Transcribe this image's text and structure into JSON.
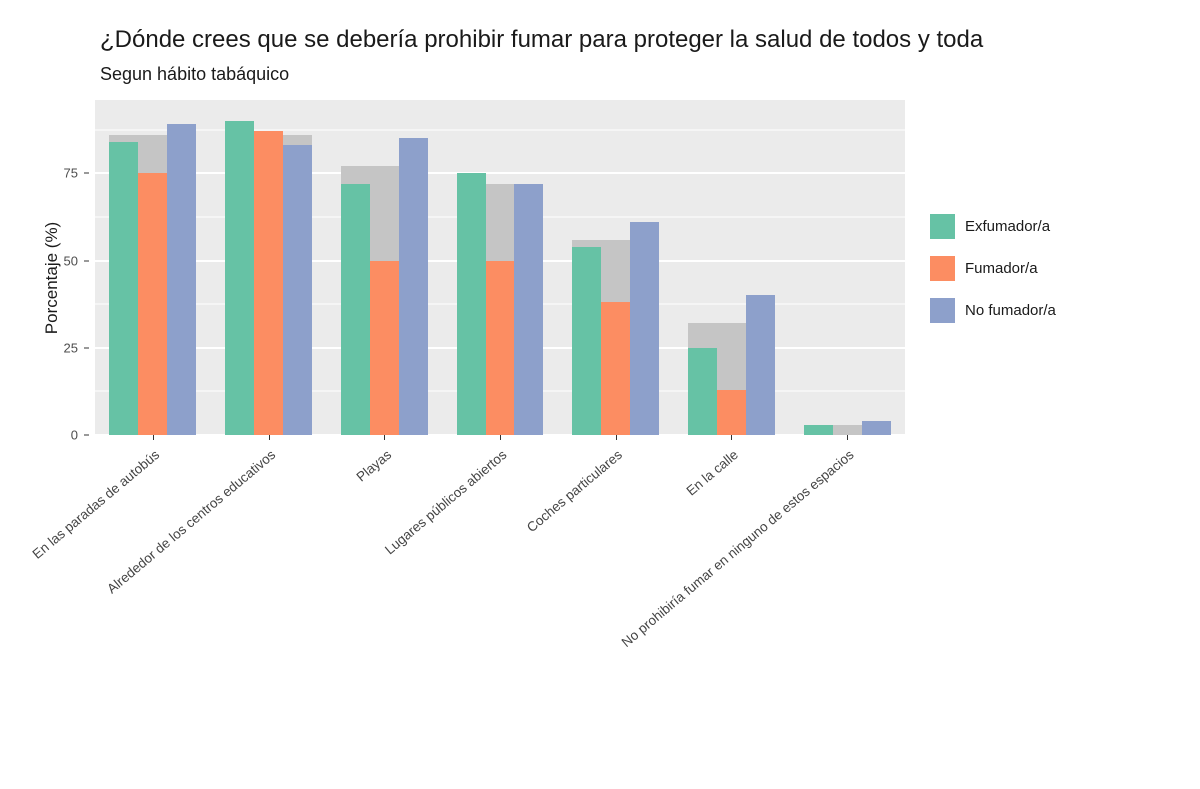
{
  "chart_data": {
    "type": "bar",
    "title": "¿Dónde crees que se debería prohibir fumar para proteger la salud de todos y toda",
    "subtitle": "Segun hábito tabáquico",
    "xlabel": "",
    "ylabel": "Porcentaje (%)",
    "ylim": [
      0,
      96
    ],
    "yticks": [
      0,
      25,
      50,
      75
    ],
    "grid": true,
    "legend_position": "right",
    "panel_background": "#ebebeb",
    "gridline_color": "#ffffff",
    "categories": [
      "En las paradas de autobús",
      "Alrededor de los centros educativos",
      "Playas",
      "Lugares públicos abiertos",
      "Coches particulares",
      "En la calle",
      "No prohibiría fumar en ninguno de estos espacios"
    ],
    "background_series": {
      "name": "total",
      "color": "#c5c5c5",
      "values": [
        86,
        86,
        77,
        72,
        56,
        32,
        3
      ]
    },
    "series": [
      {
        "name": "Exfumador/a",
        "color": "#66c2a5",
        "values": [
          84,
          90,
          72,
          75,
          54,
          25,
          3
        ]
      },
      {
        "name": "Fumador/a",
        "color": "#fc8d62",
        "values": [
          75,
          87,
          50,
          50,
          38,
          13,
          0
        ]
      },
      {
        "name": "No fumador/a",
        "color": "#8da0cb",
        "values": [
          89,
          83,
          85,
          72,
          61,
          40,
          4
        ]
      }
    ]
  }
}
